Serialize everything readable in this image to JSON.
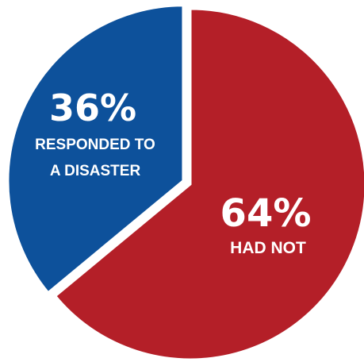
{
  "chart_data": {
    "type": "pie",
    "slices": [
      {
        "value": 64,
        "value_label": "64%",
        "label_lines": [
          "HAD NOT"
        ],
        "color": "#b41f28"
      },
      {
        "value": 36,
        "value_label": "36%",
        "label_lines": [
          "RESPONDED TO",
          "A DISASTER"
        ],
        "color": "#0d519b",
        "exploded": true
      }
    ],
    "legend": "none"
  }
}
